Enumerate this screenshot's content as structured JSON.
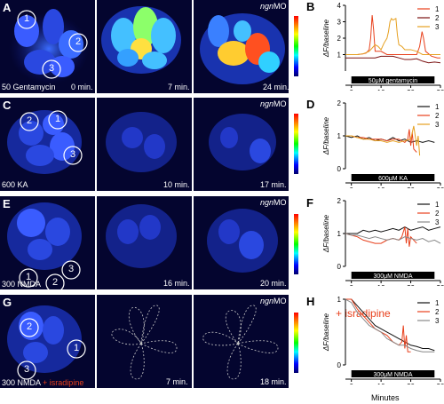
{
  "rows": [
    {
      "letter": "A",
      "graph_letter": "B",
      "caption": "50 Gentamycin",
      "times": [
        "0 min.",
        "7 min.",
        "24 min."
      ],
      "cells": [
        "1",
        "2",
        "3"
      ],
      "show_mo": true
    },
    {
      "letter": "C",
      "graph_letter": "D",
      "caption": "600 KA",
      "times": [
        "",
        "10 min.",
        "17 min."
      ],
      "cells": [
        "2",
        "1",
        "3"
      ],
      "show_mo": true
    },
    {
      "letter": "E",
      "graph_letter": "F",
      "caption": "300 NMDA",
      "times": [
        "",
        "16 min.",
        "20 min."
      ],
      "cells": [
        "3",
        "1",
        "2"
      ],
      "show_mo": true
    },
    {
      "letter": "G",
      "graph_letter": "H",
      "caption": "300 NMDA",
      "caption_extra": "+ isradipine",
      "times": [
        "",
        "7 min.",
        "18 min."
      ],
      "cells": [
        "2",
        "1",
        "3"
      ],
      "show_mo": true
    }
  ],
  "mo_label": "ngn",
  "mo_suffix": "MO",
  "isradipine_tag": "+ isradipine",
  "x_axis_label": "Minutes",
  "chart_data": [
    {
      "type": "line",
      "ylabel": "ΔF/baseline",
      "xlim": [
        -2,
        30
      ],
      "ylim": [
        0,
        4
      ],
      "yticks": [
        1,
        2,
        3,
        4
      ],
      "xticks": [
        0,
        10,
        20,
        30
      ],
      "bar_label": "50μM gentamycin",
      "series": [
        {
          "name": "1",
          "color": "#e8401c",
          "x": [
            -2,
            0,
            2,
            4,
            5,
            6,
            6.5,
            7,
            7.5,
            8,
            10,
            12,
            14,
            16,
            18,
            20,
            22,
            23,
            23.8,
            24.3,
            25,
            27,
            29,
            30
          ],
          "y": [
            1,
            1,
            1,
            1.05,
            1.1,
            1.3,
            2,
            3.4,
            2.5,
            1.2,
            1.2,
            1.0,
            1.0,
            1.0,
            1.0,
            1.0,
            1.0,
            1.5,
            2.4,
            2.0,
            1.2,
            0.9,
            0.8,
            0.8
          ]
        },
        {
          "name": "2",
          "color": "#7a1010",
          "x": [
            -2,
            0,
            2,
            4,
            6,
            8,
            10,
            12,
            14,
            16,
            18,
            20,
            22,
            24,
            26,
            28,
            30
          ],
          "y": [
            0.8,
            0.8,
            0.8,
            0.8,
            0.8,
            0.8,
            0.9,
            0.9,
            0.9,
            0.8,
            0.7,
            0.7,
            0.75,
            0.6,
            0.5,
            0.55,
            0.5
          ]
        },
        {
          "name": "3",
          "color": "#e6a020",
          "x": [
            -2,
            0,
            2,
            4,
            6,
            8,
            9,
            10,
            11,
            12,
            12.5,
            13,
            13.5,
            14,
            15,
            15.5,
            16,
            17,
            18,
            20,
            22,
            24,
            26,
            28,
            30
          ],
          "y": [
            1,
            1,
            1,
            1.05,
            1.2,
            1.6,
            1.5,
            1.3,
            1.7,
            2.0,
            2.4,
            3.0,
            3.2,
            3.1,
            3.2,
            2.2,
            1.6,
            1.5,
            1.3,
            1.3,
            1.2,
            1.0,
            1.0,
            1.0,
            1.0
          ]
        }
      ]
    },
    {
      "type": "line",
      "ylabel": "ΔF/baseline",
      "xlim": [
        -2,
        30
      ],
      "ylim": [
        0,
        2
      ],
      "yticks": [
        0,
        1,
        2
      ],
      "xticks": [
        0,
        10,
        20,
        30
      ],
      "bar_label": "600μM KA",
      "series": [
        {
          "name": "1",
          "color": "#111111",
          "x": [
            -2,
            0,
            2,
            4,
            6,
            8,
            10,
            12,
            14,
            16,
            18,
            20,
            22,
            24,
            26,
            28
          ],
          "y": [
            1,
            0.95,
            1.0,
            0.9,
            0.95,
            0.85,
            0.9,
            0.85,
            0.95,
            0.85,
            0.9,
            0.8,
            0.85,
            0.8,
            0.85,
            0.8
          ]
        },
        {
          "name": "2",
          "color": "#e8401c",
          "x": [
            -2,
            0,
            2,
            4,
            6,
            8,
            10,
            12,
            14,
            16,
            18,
            19,
            19.5,
            20,
            20.5,
            21,
            22
          ],
          "y": [
            1,
            1.0,
            0.95,
            0.95,
            0.9,
            0.9,
            0.9,
            0.85,
            0.9,
            0.9,
            0.8,
            0.9,
            1.2,
            0.7,
            1.1,
            0.6,
            0.5
          ]
        },
        {
          "name": "3",
          "color": "#e6a020",
          "x": [
            -2,
            0,
            2,
            4,
            6,
            8,
            10,
            12,
            14,
            16,
            18,
            20,
            21,
            22,
            22.5,
            23
          ],
          "y": [
            1,
            1.0,
            0.95,
            0.9,
            0.9,
            0.85,
            0.85,
            0.8,
            0.85,
            0.8,
            0.85,
            0.9,
            1.3,
            0.7,
            1.0,
            0.4
          ]
        }
      ]
    },
    {
      "type": "line",
      "ylabel": "ΔF/baseline",
      "xlim": [
        -2,
        30
      ],
      "ylim": [
        0,
        2
      ],
      "yticks": [
        0,
        1,
        2
      ],
      "xticks": [
        0,
        10,
        20,
        30
      ],
      "bar_label": "300μM NMDA",
      "series": [
        {
          "name": "1",
          "color": "#111111",
          "x": [
            -2,
            0,
            2,
            4,
            6,
            8,
            10,
            12,
            14,
            16,
            18,
            20,
            22,
            24,
            26,
            28,
            30
          ],
          "y": [
            1,
            1.0,
            1.0,
            1.1,
            1.05,
            1.1,
            1.05,
            1.1,
            1.15,
            1.1,
            1.2,
            1.1,
            1.15,
            1.2,
            1.1,
            1.15,
            1.2
          ]
        },
        {
          "name": "2",
          "color": "#e8401c",
          "x": [
            -2,
            0,
            2,
            4,
            6,
            8,
            10,
            12,
            14,
            16,
            17,
            18,
            18.5,
            19,
            19.5,
            20,
            21,
            22
          ],
          "y": [
            1,
            0.95,
            0.9,
            0.8,
            0.75,
            0.7,
            0.7,
            0.8,
            0.85,
            0.8,
            0.9,
            1.2,
            0.7,
            1.15,
            0.6,
            0.9,
            0.8,
            0.7
          ]
        },
        {
          "name": "3",
          "color": "#888888",
          "x": [
            -2,
            0,
            2,
            4,
            6,
            8,
            10,
            12,
            14,
            16,
            18,
            20,
            22,
            24,
            26,
            28,
            30
          ],
          "y": [
            1,
            0.95,
            0.95,
            0.9,
            0.85,
            0.9,
            0.85,
            0.8,
            0.85,
            0.8,
            0.9,
            0.85,
            0.8,
            0.85,
            0.75,
            0.8,
            0.7
          ]
        }
      ]
    },
    {
      "type": "line",
      "ylabel": "ΔF/baseline",
      "xlim": [
        -2,
        30
      ],
      "ylim": [
        0,
        1
      ],
      "yticks": [
        0,
        1
      ],
      "xticks": [
        0,
        10,
        20,
        30
      ],
      "bar_label": "300μM NMDA",
      "series": [
        {
          "name": "1",
          "color": "#111111",
          "x": [
            -2,
            0,
            2,
            4,
            6,
            8,
            10,
            12,
            14,
            16,
            18,
            20,
            22,
            24,
            26,
            28
          ],
          "y": [
            1,
            1.0,
            0.9,
            0.8,
            0.7,
            0.6,
            0.55,
            0.5,
            0.45,
            0.4,
            0.35,
            0.3,
            0.28,
            0.25,
            0.25,
            0.22
          ]
        },
        {
          "name": "2",
          "color": "#e8401c",
          "x": [
            -2,
            0,
            2,
            4,
            6,
            8,
            10,
            12,
            14,
            16,
            17,
            17.5,
            18,
            18.5,
            19,
            20
          ],
          "y": [
            1,
            1.0,
            0.85,
            0.75,
            0.65,
            0.55,
            0.5,
            0.45,
            0.35,
            0.3,
            0.35,
            0.6,
            0.25,
            0.45,
            0.2,
            0.2
          ]
        },
        {
          "name": "3",
          "color": "#888888",
          "x": [
            -2,
            0,
            2,
            4,
            6,
            8,
            10,
            12,
            14,
            16,
            18,
            20,
            22,
            24,
            26,
            28
          ],
          "y": [
            1,
            0.95,
            0.8,
            0.7,
            0.6,
            0.55,
            0.5,
            0.4,
            0.35,
            0.3,
            0.3,
            0.25,
            0.22,
            0.2,
            0.2,
            0.2
          ]
        }
      ]
    }
  ]
}
